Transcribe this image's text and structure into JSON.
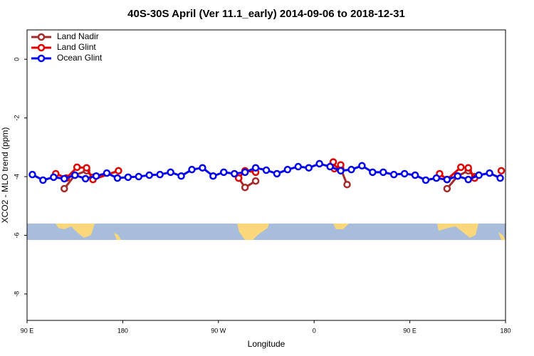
{
  "chart_data": {
    "type": "line",
    "title": "40S-30S April (Ver 11.1_early)   2014-09-06 to 2018-12-31",
    "x_label": "Longitude",
    "y_label": "XCO2 - MLO trend (ppm)",
    "xlim": [
      90,
      540
    ],
    "ylim": [
      -8.9,
      1.0
    ],
    "xticks": [
      {
        "value": 90,
        "label": "90 E"
      },
      180,
      {
        "value": 270,
        "label": "90 W"
      },
      {
        "value": 360,
        "label": "0"
      },
      {
        "value": 450,
        "label": "90 E"
      },
      {
        "value": 540,
        "label": "180"
      }
    ],
    "yticks": [
      0,
      -2,
      -4,
      -6,
      -8
    ],
    "legend": "top-left",
    "series": [
      {
        "name": "Land Nadir",
        "color": "#a52a2a",
        "x": [
          125,
          135,
          146,
          152,
          null,
          289,
          295,
          305,
          null,
          377,
          385,
          391,
          null,
          485,
          495,
          505,
          511
        ],
        "values": [
          -4.41,
          -3.95,
          -3.8,
          -4.02,
          null,
          -4.05,
          -4.37,
          -4.15,
          null,
          -3.6,
          -3.73,
          -4.27,
          null,
          -4.41,
          -3.98,
          -3.8,
          -4.0
        ]
      },
      {
        "name": "Land Glint",
        "color": "#e00000",
        "x": [
          117,
          127,
          137,
          146,
          152,
          176,
          null,
          289,
          295,
          305,
          null,
          378,
          379,
          385,
          null,
          478,
          485,
          498,
          505,
          511,
          null,
          536
        ],
        "values": [
          -3.9,
          -4.05,
          -3.68,
          -3.7,
          -4.1,
          -3.8,
          null,
          -4.05,
          -3.8,
          -3.85,
          null,
          -3.5,
          -3.73,
          -3.6,
          null,
          -3.9,
          -4.1,
          -3.68,
          -3.7,
          -4.05,
          null,
          -3.8
        ]
      },
      {
        "name": "Ocean Glint",
        "color": "#0000ee",
        "x": [
          95,
          105,
          115,
          125,
          135,
          145,
          155,
          165,
          175,
          185,
          195,
          205,
          215,
          225,
          235,
          245,
          255,
          265,
          275,
          285,
          295,
          305,
          315,
          325,
          335,
          345,
          355,
          365,
          375,
          385,
          395,
          405,
          415,
          425,
          435,
          445,
          455,
          465,
          475,
          485,
          495,
          505,
          515,
          525,
          535
        ],
        "values": [
          -3.93,
          -4.12,
          -4.02,
          -4.07,
          -3.95,
          -4.07,
          -3.98,
          -3.88,
          -4.05,
          -4.02,
          -4.0,
          -3.95,
          -3.93,
          -3.85,
          -3.98,
          -3.76,
          -3.7,
          -3.98,
          -3.85,
          -3.9,
          -3.85,
          -3.7,
          -3.78,
          -3.9,
          -3.76,
          -3.66,
          -3.7,
          -3.56,
          -3.66,
          -3.8,
          -3.76,
          -3.63,
          -3.85,
          -3.85,
          -3.93,
          -3.9,
          -3.95,
          -4.12,
          -4.05,
          -4.1,
          -3.98,
          -4.1,
          -3.95,
          -3.88,
          -4.05
        ]
      }
    ]
  }
}
